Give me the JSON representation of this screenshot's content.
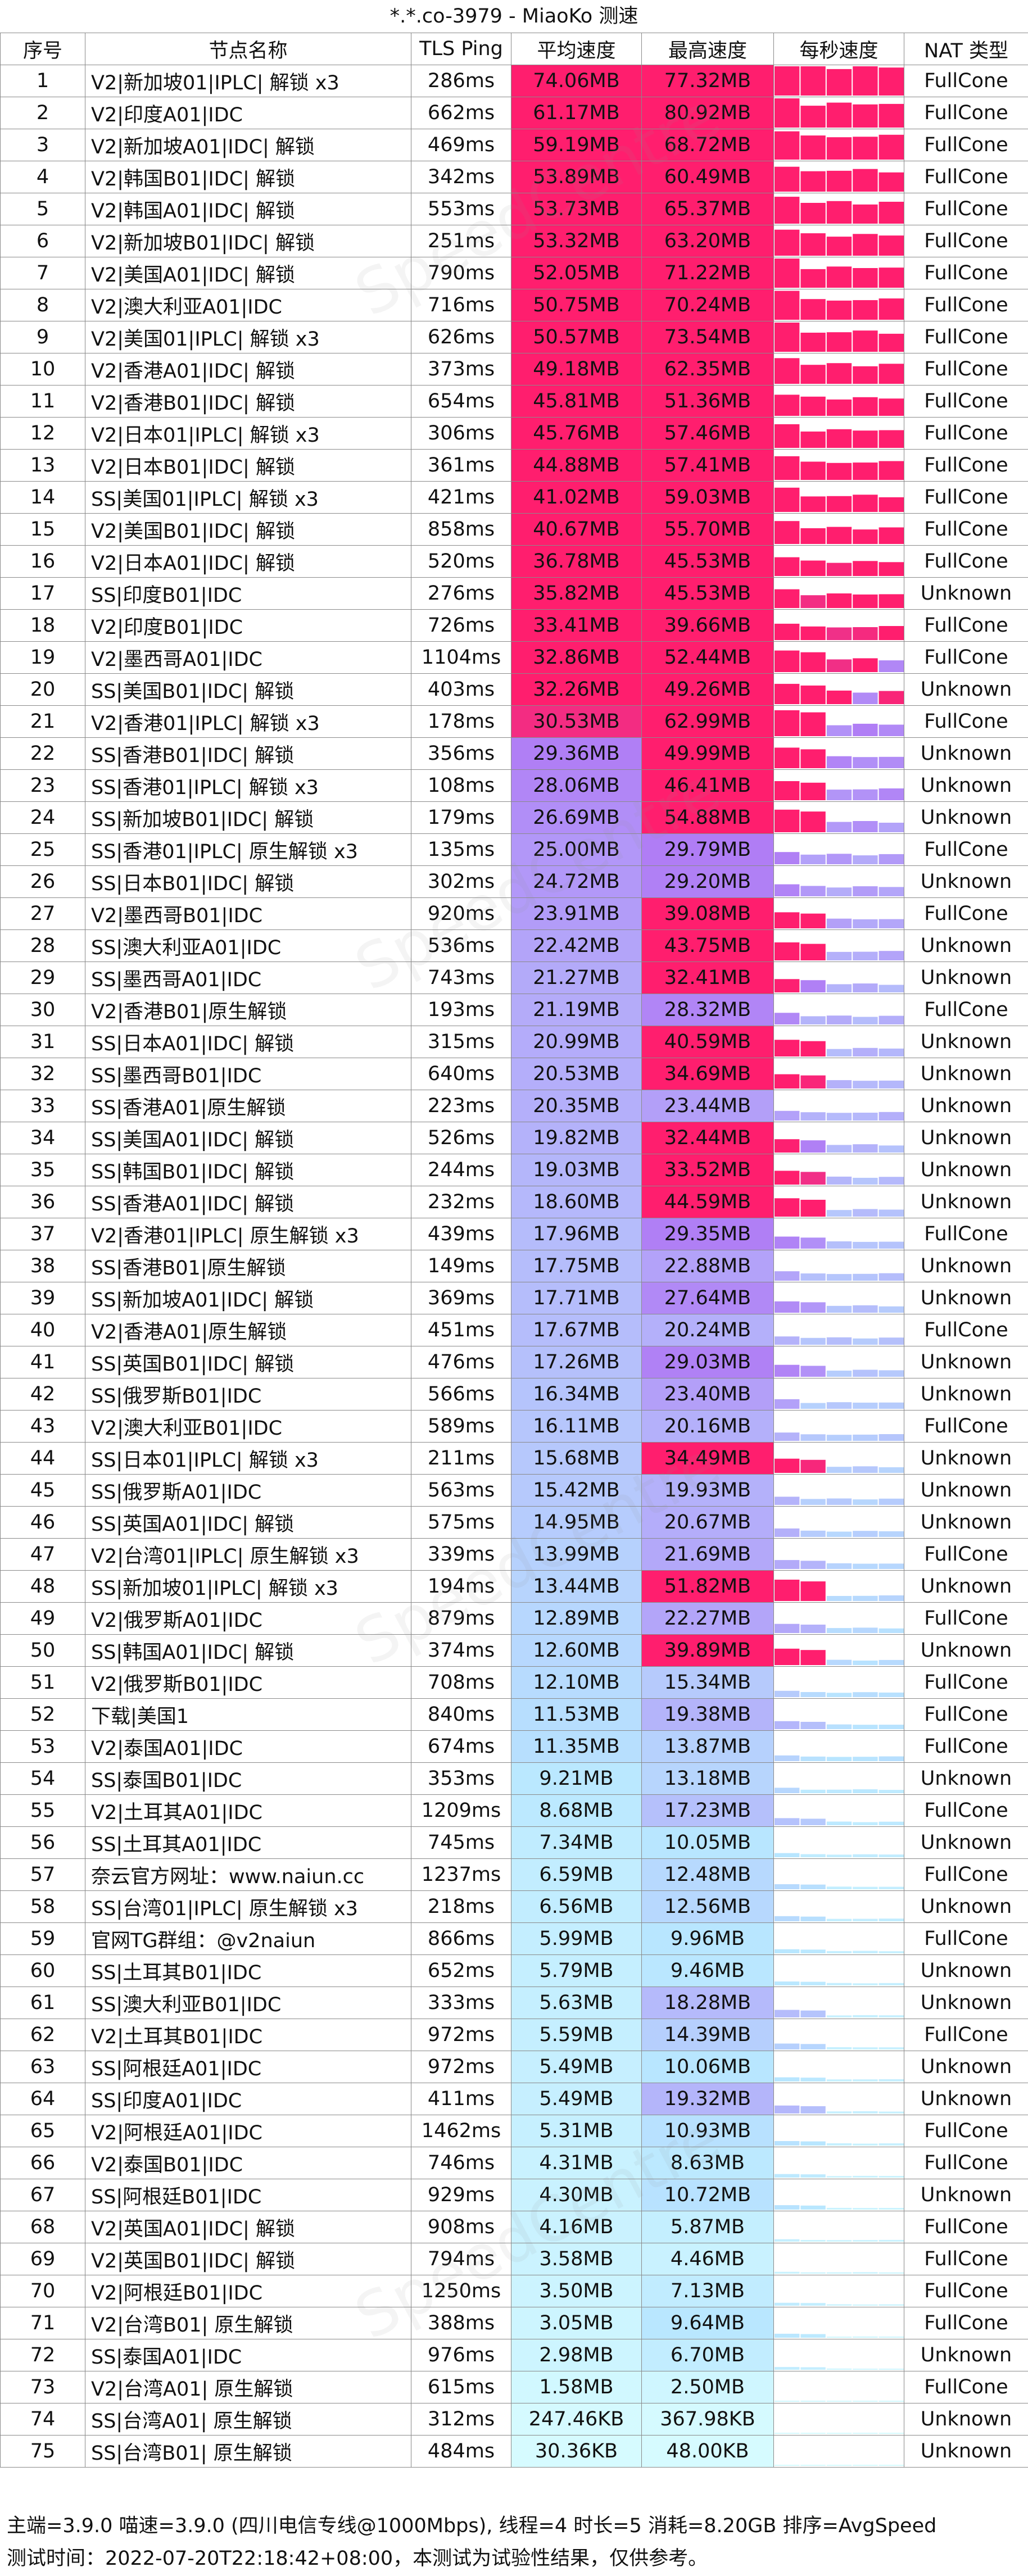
{
  "title": "*.*.co-3979 - MiaoKo 测速",
  "columns": [
    "序号",
    "节点名称",
    "TLS Ping",
    "平均速度",
    "最高速度",
    "每秒速度",
    "NAT 类型"
  ],
  "rows": [
    {
      "idx": "1",
      "name": "V2|新加坡01|IPLC| 解锁 x3",
      "ping": "286ms",
      "avg": "74.06MB",
      "max": "77.32MB",
      "nat": "FullCone",
      "avg_mb": 74.06,
      "max_mb": 77.32
    },
    {
      "idx": "2",
      "name": "V2|印度A01|IDC",
      "ping": "662ms",
      "avg": "61.17MB",
      "max": "80.92MB",
      "nat": "FullCone",
      "avg_mb": 61.17,
      "max_mb": 80.92
    },
    {
      "idx": "3",
      "name": "V2|新加坡A01|IDC| 解锁",
      "ping": "469ms",
      "avg": "59.19MB",
      "max": "68.72MB",
      "nat": "FullCone",
      "avg_mb": 59.19,
      "max_mb": 68.72
    },
    {
      "idx": "4",
      "name": "V2|韩国B01|IDC| 解锁",
      "ping": "342ms",
      "avg": "53.89MB",
      "max": "60.49MB",
      "nat": "FullCone",
      "avg_mb": 53.89,
      "max_mb": 60.49
    },
    {
      "idx": "5",
      "name": "V2|韩国A01|IDC| 解锁",
      "ping": "553ms",
      "avg": "53.73MB",
      "max": "65.37MB",
      "nat": "FullCone",
      "avg_mb": 53.73,
      "max_mb": 65.37
    },
    {
      "idx": "6",
      "name": "V2|新加坡B01|IDC| 解锁",
      "ping": "251ms",
      "avg": "53.32MB",
      "max": "63.20MB",
      "nat": "FullCone",
      "avg_mb": 53.32,
      "max_mb": 63.2
    },
    {
      "idx": "7",
      "name": "V2|美国A01|IDC| 解锁",
      "ping": "790ms",
      "avg": "52.05MB",
      "max": "71.22MB",
      "nat": "FullCone",
      "avg_mb": 52.05,
      "max_mb": 71.22
    },
    {
      "idx": "8",
      "name": "V2|澳大利亚A01|IDC",
      "ping": "716ms",
      "avg": "50.75MB",
      "max": "70.24MB",
      "nat": "FullCone",
      "avg_mb": 50.75,
      "max_mb": 70.24
    },
    {
      "idx": "9",
      "name": "V2|美国01|IPLC| 解锁 x3",
      "ping": "626ms",
      "avg": "50.57MB",
      "max": "73.54MB",
      "nat": "FullCone",
      "avg_mb": 50.57,
      "max_mb": 73.54
    },
    {
      "idx": "10",
      "name": "V2|香港A01|IDC| 解锁",
      "ping": "373ms",
      "avg": "49.18MB",
      "max": "62.35MB",
      "nat": "FullCone",
      "avg_mb": 49.18,
      "max_mb": 62.35
    },
    {
      "idx": "11",
      "name": "V2|香港B01|IDC| 解锁",
      "ping": "654ms",
      "avg": "45.81MB",
      "max": "51.36MB",
      "nat": "FullCone",
      "avg_mb": 45.81,
      "max_mb": 51.36
    },
    {
      "idx": "12",
      "name": "V2|日本01|IPLC| 解锁 x3",
      "ping": "306ms",
      "avg": "45.76MB",
      "max": "57.46MB",
      "nat": "FullCone",
      "avg_mb": 45.76,
      "max_mb": 57.46
    },
    {
      "idx": "13",
      "name": "V2|日本B01|IDC| 解锁",
      "ping": "361ms",
      "avg": "44.88MB",
      "max": "57.41MB",
      "nat": "FullCone",
      "avg_mb": 44.88,
      "max_mb": 57.41
    },
    {
      "idx": "14",
      "name": "SS|美国01|IPLC| 解锁 x3",
      "ping": "421ms",
      "avg": "41.02MB",
      "max": "59.03MB",
      "nat": "FullCone",
      "avg_mb": 41.02,
      "max_mb": 59.03
    },
    {
      "idx": "15",
      "name": "V2|美国B01|IDC| 解锁",
      "ping": "858ms",
      "avg": "40.67MB",
      "max": "55.70MB",
      "nat": "FullCone",
      "avg_mb": 40.67,
      "max_mb": 55.7
    },
    {
      "idx": "16",
      "name": "V2|日本A01|IDC| 解锁",
      "ping": "520ms",
      "avg": "36.78MB",
      "max": "45.53MB",
      "nat": "FullCone",
      "avg_mb": 36.78,
      "max_mb": 45.53
    },
    {
      "idx": "17",
      "name": "SS|印度B01|IDC",
      "ping": "276ms",
      "avg": "35.82MB",
      "max": "45.53MB",
      "nat": "Unknown",
      "avg_mb": 35.82,
      "max_mb": 45.53
    },
    {
      "idx": "18",
      "name": "V2|印度B01|IDC",
      "ping": "726ms",
      "avg": "33.41MB",
      "max": "39.66MB",
      "nat": "FullCone",
      "avg_mb": 33.41,
      "max_mb": 39.66
    },
    {
      "idx": "19",
      "name": "V2|墨西哥A01|IDC",
      "ping": "1104ms",
      "avg": "32.86MB",
      "max": "52.44MB",
      "nat": "FullCone",
      "avg_mb": 32.86,
      "max_mb": 52.44
    },
    {
      "idx": "20",
      "name": "SS|美国B01|IDC| 解锁",
      "ping": "403ms",
      "avg": "32.26MB",
      "max": "49.26MB",
      "nat": "Unknown",
      "avg_mb": 32.26,
      "max_mb": 49.26
    },
    {
      "idx": "21",
      "name": "V2|香港01|IPLC| 解锁 x3",
      "ping": "178ms",
      "avg": "30.53MB",
      "max": "62.99MB",
      "nat": "FullCone",
      "avg_mb": 30.53,
      "max_mb": 62.99
    },
    {
      "idx": "22",
      "name": "SS|香港B01|IDC| 解锁",
      "ping": "356ms",
      "avg": "29.36MB",
      "max": "49.99MB",
      "nat": "Unknown",
      "avg_mb": 29.36,
      "max_mb": 49.99
    },
    {
      "idx": "23",
      "name": "SS|香港01|IPLC| 解锁 x3",
      "ping": "108ms",
      "avg": "28.06MB",
      "max": "46.41MB",
      "nat": "Unknown",
      "avg_mb": 28.06,
      "max_mb": 46.41
    },
    {
      "idx": "24",
      "name": "SS|新加坡B01|IDC| 解锁",
      "ping": "179ms",
      "avg": "26.69MB",
      "max": "54.88MB",
      "nat": "Unknown",
      "avg_mb": 26.69,
      "max_mb": 54.88
    },
    {
      "idx": "25",
      "name": "SS|香港01|IPLC| 原生解锁 x3",
      "ping": "135ms",
      "avg": "25.00MB",
      "max": "29.79MB",
      "nat": "FullCone",
      "avg_mb": 25.0,
      "max_mb": 29.79
    },
    {
      "idx": "26",
      "name": "SS|日本B01|IDC| 解锁",
      "ping": "302ms",
      "avg": "24.72MB",
      "max": "29.20MB",
      "nat": "Unknown",
      "avg_mb": 24.72,
      "max_mb": 29.2
    },
    {
      "idx": "27",
      "name": "V2|墨西哥B01|IDC",
      "ping": "920ms",
      "avg": "23.91MB",
      "max": "39.08MB",
      "nat": "FullCone",
      "avg_mb": 23.91,
      "max_mb": 39.08
    },
    {
      "idx": "28",
      "name": "SS|澳大利亚A01|IDC",
      "ping": "536ms",
      "avg": "22.42MB",
      "max": "43.75MB",
      "nat": "Unknown",
      "avg_mb": 22.42,
      "max_mb": 43.75
    },
    {
      "idx": "29",
      "name": "SS|墨西哥A01|IDC",
      "ping": "743ms",
      "avg": "21.27MB",
      "max": "32.41MB",
      "nat": "Unknown",
      "avg_mb": 21.27,
      "max_mb": 32.41
    },
    {
      "idx": "30",
      "name": "V2|香港B01|原生解锁",
      "ping": "193ms",
      "avg": "21.19MB",
      "max": "28.32MB",
      "nat": "FullCone",
      "avg_mb": 21.19,
      "max_mb": 28.32
    },
    {
      "idx": "31",
      "name": "SS|日本A01|IDC| 解锁",
      "ping": "315ms",
      "avg": "20.99MB",
      "max": "40.59MB",
      "nat": "Unknown",
      "avg_mb": 20.99,
      "max_mb": 40.59
    },
    {
      "idx": "32",
      "name": "SS|墨西哥B01|IDC",
      "ping": "640ms",
      "avg": "20.53MB",
      "max": "34.69MB",
      "nat": "Unknown",
      "avg_mb": 20.53,
      "max_mb": 34.69
    },
    {
      "idx": "33",
      "name": "SS|香港A01|原生解锁",
      "ping": "223ms",
      "avg": "20.35MB",
      "max": "23.44MB",
      "nat": "Unknown",
      "avg_mb": 20.35,
      "max_mb": 23.44
    },
    {
      "idx": "34",
      "name": "SS|美国A01|IDC| 解锁",
      "ping": "526ms",
      "avg": "19.82MB",
      "max": "32.44MB",
      "nat": "Unknown",
      "avg_mb": 19.82,
      "max_mb": 32.44
    },
    {
      "idx": "35",
      "name": "SS|韩国B01|IDC| 解锁",
      "ping": "244ms",
      "avg": "19.03MB",
      "max": "33.52MB",
      "nat": "Unknown",
      "avg_mb": 19.03,
      "max_mb": 33.52
    },
    {
      "idx": "36",
      "name": "SS|香港A01|IDC| 解锁",
      "ping": "232ms",
      "avg": "18.60MB",
      "max": "44.59MB",
      "nat": "Unknown",
      "avg_mb": 18.6,
      "max_mb": 44.59
    },
    {
      "idx": "37",
      "name": "V2|香港01|IPLC| 原生解锁 x3",
      "ping": "439ms",
      "avg": "17.96MB",
      "max": "29.35MB",
      "nat": "FullCone",
      "avg_mb": 17.96,
      "max_mb": 29.35
    },
    {
      "idx": "38",
      "name": "SS|香港B01|原生解锁",
      "ping": "149ms",
      "avg": "17.75MB",
      "max": "22.88MB",
      "nat": "Unknown",
      "avg_mb": 17.75,
      "max_mb": 22.88
    },
    {
      "idx": "39",
      "name": "SS|新加坡A01|IDC| 解锁",
      "ping": "369ms",
      "avg": "17.71MB",
      "max": "27.64MB",
      "nat": "Unknown",
      "avg_mb": 17.71,
      "max_mb": 27.64
    },
    {
      "idx": "40",
      "name": "V2|香港A01|原生解锁",
      "ping": "451ms",
      "avg": "17.67MB",
      "max": "20.24MB",
      "nat": "FullCone",
      "avg_mb": 17.67,
      "max_mb": 20.24
    },
    {
      "idx": "41",
      "name": "SS|英国B01|IDC| 解锁",
      "ping": "476ms",
      "avg": "17.26MB",
      "max": "29.03MB",
      "nat": "Unknown",
      "avg_mb": 17.26,
      "max_mb": 29.03
    },
    {
      "idx": "42",
      "name": "SS|俄罗斯B01|IDC",
      "ping": "566ms",
      "avg": "16.34MB",
      "max": "23.40MB",
      "nat": "Unknown",
      "avg_mb": 16.34,
      "max_mb": 23.4
    },
    {
      "idx": "43",
      "name": "V2|澳大利亚B01|IDC",
      "ping": "589ms",
      "avg": "16.11MB",
      "max": "20.16MB",
      "nat": "FullCone",
      "avg_mb": 16.11,
      "max_mb": 20.16
    },
    {
      "idx": "44",
      "name": "SS|日本01|IPLC| 解锁 x3",
      "ping": "211ms",
      "avg": "15.68MB",
      "max": "34.49MB",
      "nat": "Unknown",
      "avg_mb": 15.68,
      "max_mb": 34.49
    },
    {
      "idx": "45",
      "name": "SS|俄罗斯A01|IDC",
      "ping": "563ms",
      "avg": "15.42MB",
      "max": "19.93MB",
      "nat": "Unknown",
      "avg_mb": 15.42,
      "max_mb": 19.93
    },
    {
      "idx": "46",
      "name": "SS|英国A01|IDC| 解锁",
      "ping": "575ms",
      "avg": "14.95MB",
      "max": "20.67MB",
      "nat": "Unknown",
      "avg_mb": 14.95,
      "max_mb": 20.67
    },
    {
      "idx": "47",
      "name": "V2|台湾01|IPLC| 原生解锁 x3",
      "ping": "339ms",
      "avg": "13.99MB",
      "max": "21.69MB",
      "nat": "FullCone",
      "avg_mb": 13.99,
      "max_mb": 21.69
    },
    {
      "idx": "48",
      "name": "SS|新加坡01|IPLC| 解锁 x3",
      "ping": "194ms",
      "avg": "13.44MB",
      "max": "51.82MB",
      "nat": "Unknown",
      "avg_mb": 13.44,
      "max_mb": 51.82
    },
    {
      "idx": "49",
      "name": "V2|俄罗斯A01|IDC",
      "ping": "879ms",
      "avg": "12.89MB",
      "max": "22.27MB",
      "nat": "FullCone",
      "avg_mb": 12.89,
      "max_mb": 22.27
    },
    {
      "idx": "50",
      "name": "SS|韩国A01|IDC| 解锁",
      "ping": "374ms",
      "avg": "12.60MB",
      "max": "39.89MB",
      "nat": "Unknown",
      "avg_mb": 12.6,
      "max_mb": 39.89
    },
    {
      "idx": "51",
      "name": "V2|俄罗斯B01|IDC",
      "ping": "708ms",
      "avg": "12.10MB",
      "max": "15.34MB",
      "nat": "FullCone",
      "avg_mb": 12.1,
      "max_mb": 15.34
    },
    {
      "idx": "52",
      "name": "下载|美国1",
      "ping": "840ms",
      "avg": "11.53MB",
      "max": "19.38MB",
      "nat": "FullCone",
      "avg_mb": 11.53,
      "max_mb": 19.38
    },
    {
      "idx": "53",
      "name": "V2|泰国A01|IDC",
      "ping": "674ms",
      "avg": "11.35MB",
      "max": "13.87MB",
      "nat": "FullCone",
      "avg_mb": 11.35,
      "max_mb": 13.87
    },
    {
      "idx": "54",
      "name": "SS|泰国B01|IDC",
      "ping": "353ms",
      "avg": "9.21MB",
      "max": "13.18MB",
      "nat": "Unknown",
      "avg_mb": 9.21,
      "max_mb": 13.18
    },
    {
      "idx": "55",
      "name": "V2|土耳其A01|IDC",
      "ping": "1209ms",
      "avg": "8.68MB",
      "max": "17.23MB",
      "nat": "FullCone",
      "avg_mb": 8.68,
      "max_mb": 17.23
    },
    {
      "idx": "56",
      "name": "SS|土耳其A01|IDC",
      "ping": "745ms",
      "avg": "7.34MB",
      "max": "10.05MB",
      "nat": "Unknown",
      "avg_mb": 7.34,
      "max_mb": 10.05
    },
    {
      "idx": "57",
      "name": "奈云官方网址：www.naiun.cc",
      "ping": "1237ms",
      "avg": "6.59MB",
      "max": "12.48MB",
      "nat": "FullCone",
      "avg_mb": 6.59,
      "max_mb": 12.48
    },
    {
      "idx": "58",
      "name": "SS|台湾01|IPLC| 原生解锁 x3",
      "ping": "218ms",
      "avg": "6.56MB",
      "max": "12.56MB",
      "nat": "Unknown",
      "avg_mb": 6.56,
      "max_mb": 12.56
    },
    {
      "idx": "59",
      "name": "官网TG群组：@v2naiun",
      "ping": "866ms",
      "avg": "5.99MB",
      "max": "9.96MB",
      "nat": "FullCone",
      "avg_mb": 5.99,
      "max_mb": 9.96
    },
    {
      "idx": "60",
      "name": "SS|土耳其B01|IDC",
      "ping": "652ms",
      "avg": "5.79MB",
      "max": "9.46MB",
      "nat": "Unknown",
      "avg_mb": 5.79,
      "max_mb": 9.46
    },
    {
      "idx": "61",
      "name": "SS|澳大利亚B01|IDC",
      "ping": "333ms",
      "avg": "5.63MB",
      "max": "18.28MB",
      "nat": "Unknown",
      "avg_mb": 5.63,
      "max_mb": 18.28
    },
    {
      "idx": "62",
      "name": "V2|土耳其B01|IDC",
      "ping": "972ms",
      "avg": "5.59MB",
      "max": "14.39MB",
      "nat": "FullCone",
      "avg_mb": 5.59,
      "max_mb": 14.39
    },
    {
      "idx": "63",
      "name": "SS|阿根廷A01|IDC",
      "ping": "972ms",
      "avg": "5.49MB",
      "max": "10.06MB",
      "nat": "Unknown",
      "avg_mb": 5.49,
      "max_mb": 10.06
    },
    {
      "idx": "64",
      "name": "SS|印度A01|IDC",
      "ping": "411ms",
      "avg": "5.49MB",
      "max": "19.32MB",
      "nat": "Unknown",
      "avg_mb": 5.49,
      "max_mb": 19.32
    },
    {
      "idx": "65",
      "name": "V2|阿根廷A01|IDC",
      "ping": "1462ms",
      "avg": "5.31MB",
      "max": "10.93MB",
      "nat": "FullCone",
      "avg_mb": 5.31,
      "max_mb": 10.93
    },
    {
      "idx": "66",
      "name": "V2|泰国B01|IDC",
      "ping": "746ms",
      "avg": "4.31MB",
      "max": "8.63MB",
      "nat": "FullCone",
      "avg_mb": 4.31,
      "max_mb": 8.63
    },
    {
      "idx": "67",
      "name": "SS|阿根廷B01|IDC",
      "ping": "929ms",
      "avg": "4.30MB",
      "max": "10.72MB",
      "nat": "Unknown",
      "avg_mb": 4.3,
      "max_mb": 10.72
    },
    {
      "idx": "68",
      "name": "V2|英国A01|IDC| 解锁",
      "ping": "908ms",
      "avg": "4.16MB",
      "max": "5.87MB",
      "nat": "FullCone",
      "avg_mb": 4.16,
      "max_mb": 5.87
    },
    {
      "idx": "69",
      "name": "V2|英国B01|IDC| 解锁",
      "ping": "794ms",
      "avg": "3.58MB",
      "max": "4.46MB",
      "nat": "FullCone",
      "avg_mb": 3.58,
      "max_mb": 4.46
    },
    {
      "idx": "70",
      "name": "V2|阿根廷B01|IDC",
      "ping": "1250ms",
      "avg": "3.50MB",
      "max": "7.13MB",
      "nat": "FullCone",
      "avg_mb": 3.5,
      "max_mb": 7.13
    },
    {
      "idx": "71",
      "name": "V2|台湾B01| 原生解锁",
      "ping": "388ms",
      "avg": "3.05MB",
      "max": "9.64MB",
      "nat": "FullCone",
      "avg_mb": 3.05,
      "max_mb": 9.64
    },
    {
      "idx": "72",
      "name": "SS|泰国A01|IDC",
      "ping": "976ms",
      "avg": "2.98MB",
      "max": "6.70MB",
      "nat": "Unknown",
      "avg_mb": 2.98,
      "max_mb": 6.7
    },
    {
      "idx": "73",
      "name": "V2|台湾A01| 原生解锁",
      "ping": "615ms",
      "avg": "1.58MB",
      "max": "2.50MB",
      "nat": "FullCone",
      "avg_mb": 1.58,
      "max_mb": 2.5
    },
    {
      "idx": "74",
      "name": "SS|台湾A01| 原生解锁",
      "ping": "312ms",
      "avg": "247.46KB",
      "max": "367.98KB",
      "nat": "Unknown",
      "avg_mb": 0.2417,
      "max_mb": 0.3594
    },
    {
      "idx": "75",
      "name": "SS|台湾B01| 原生解锁",
      "ping": "484ms",
      "avg": "30.36KB",
      "max": "48.00KB",
      "nat": "Unknown",
      "avg_mb": 0.0296,
      "max_mb": 0.0469
    }
  ],
  "footer": {
    "line1": "主端=3.9.0 喵速=3.9.0 (四川电信专线@1000Mbps), 线程=4 时长=5 消耗=8.20GB 排序=AvgSpeed",
    "line2": "测试时间：2022-07-20T22:18:42+08:00，本测试为试验性结果，仅供参考。"
  },
  "watermark_text": "SpeedCentre",
  "colors": {
    "speed_high": "#ff1e6e",
    "speed_mid": "#b07cf5",
    "speed_low": "#b8e6ff",
    "speed_lowest": "#d6fbff"
  }
}
